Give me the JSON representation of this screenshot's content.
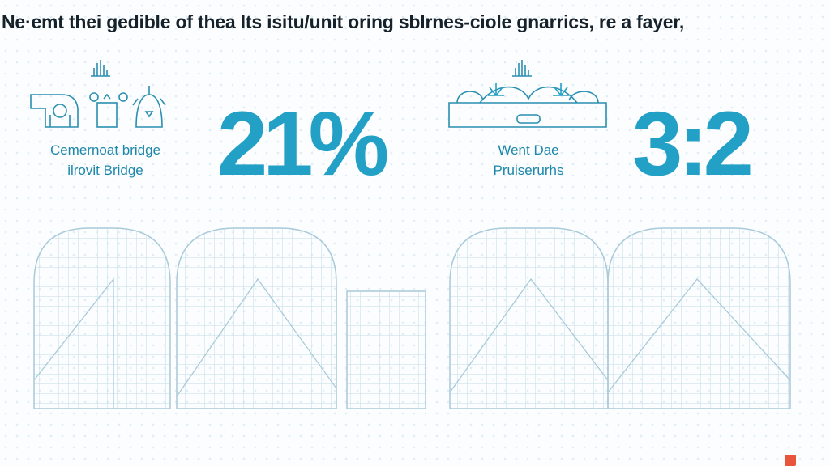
{
  "title": "Ne·emt thei gedible of thea lts  isitu/unit oring sblrnes-ciole gnarrics, re a fayer,",
  "left_block": {
    "label_line1": "Cemernoat bridge",
    "label_line2": "ilrovit Bridge",
    "stat": "21%"
  },
  "right_block": {
    "label_line1": "Went Dae",
    "label_line2": "Pruiserurhs",
    "stat": "3:2"
  },
  "colors": {
    "accent": "#23a0c6",
    "title": "#15222b",
    "line": "#b9d7e4",
    "corner": "#e8553a"
  },
  "icons": [
    "bar-chart-icon",
    "bridge-machinery-icon",
    "sparkle-arch-icon"
  ]
}
